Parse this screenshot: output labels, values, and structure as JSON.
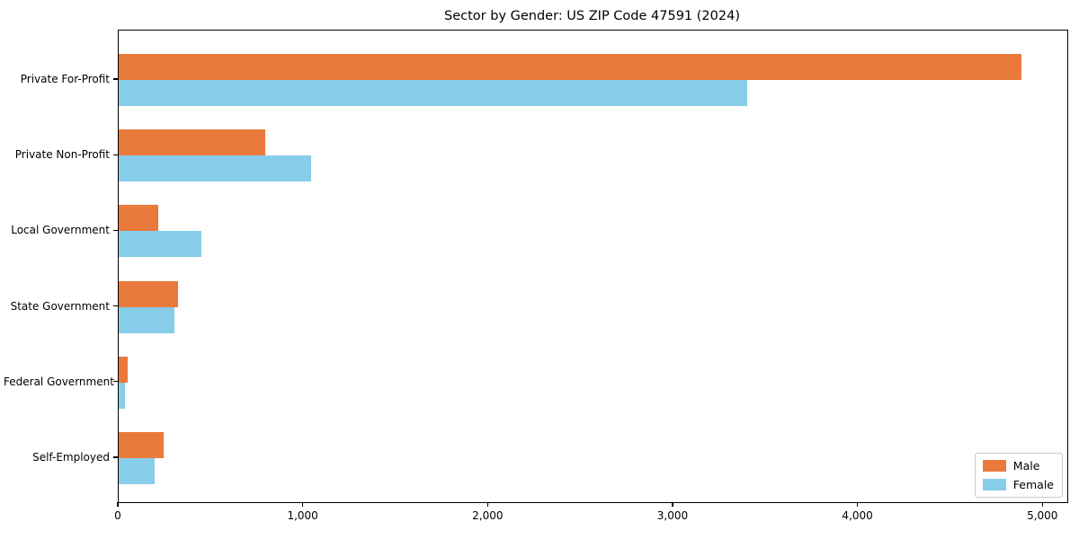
{
  "figure": {
    "title": "Sector by Gender: US ZIP Code 47591 (2024)"
  },
  "chart_data": {
    "type": "bar",
    "orientation": "horizontal",
    "title": "Sector by Gender: US ZIP Code 47591 (2024)",
    "categories": [
      "Private For-Profit",
      "Private Non-Profit",
      "Local Government",
      "State Government",
      "Federal Government",
      "Self-Employed"
    ],
    "series": [
      {
        "name": "Male",
        "color": "#EA7A3C",
        "values": [
          4880,
          790,
          215,
          320,
          50,
          245
        ]
      },
      {
        "name": "Female",
        "color": "#87CDE9",
        "values": [
          3400,
          1040,
          445,
          300,
          35,
          195
        ]
      }
    ],
    "xlabel": "",
    "ylabel": "",
    "xlim": [
      0,
      5130
    ],
    "xticks": {
      "values": [
        0,
        1000,
        2000,
        3000,
        4000,
        5000
      ],
      "labels": [
        "0",
        "1,000",
        "2,000",
        "3,000",
        "4,000",
        "5,000"
      ]
    },
    "grid": false,
    "legend": {
      "position": "lower right",
      "entries": [
        "Male",
        "Female"
      ]
    }
  }
}
